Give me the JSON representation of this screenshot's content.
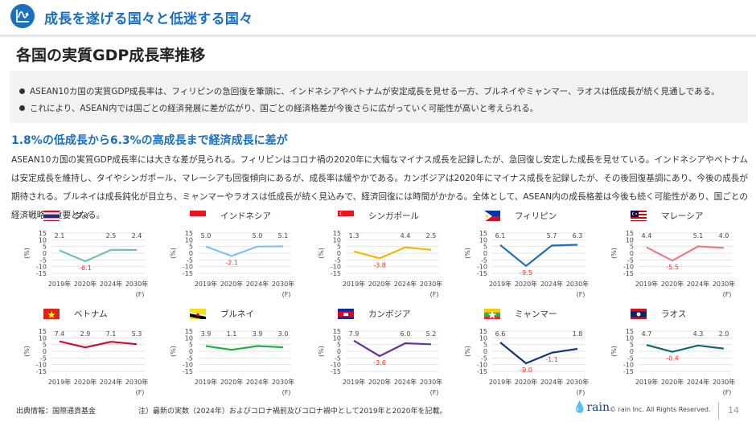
{
  "header": {
    "section_title": "成長を遂げる国々と低迷する国々",
    "icon": "chart-wave-icon"
  },
  "page_title": "各国の実質GDP成長率推移",
  "summary": [
    "ASEAN10カ国の実質GDP成長率は、フィリピンの急回復を筆頭に、インドネシアやベトナムが安定成長を見せる一方、ブルネイやミャンマー、ラオスは低成長が続く見通しである。",
    "これにより、ASEAN内では国ごとの経済発展に差が広がり、国ごとの経済格差が今後さらに広がっていく可能性が高いと考えられる。"
  ],
  "sub_heading": "1.8%の低成長から6.3%の高成長まで経済成長に差が",
  "body_text": "ASEAN10カ国の実質GDP成長率には大きな差が見られる。フィリピンはコロナ禍の2020年に大幅なマイナス成長を記録したが、急回復し安定した成長を見せている。インドネシアやベトナムは安定成長を維持し、タイやシンガポール、マレーシアも回復傾向にあるが、成長率は緩やかである。カンボジアは2020年にマイナス成長を記録したが、その後回復基調にあり、今後の成長が期待される。ブルネイは成長鈍化が目立ち、ミャンマーやラオスは低成長が続く見込みで、経済回復には時間がかかる。全体として、ASEAN内の成長格差は今後も続く可能性があり、国ごとの経済戦略が重要となる。",
  "axis": {
    "y_ticks": [
      "15",
      "10",
      "5",
      "0",
      "-5",
      "-10",
      "-15"
    ],
    "y_label": "(%)",
    "x_labels": [
      "2019年",
      "2020年",
      "2024年",
      "2030年"
    ],
    "forecast_label": "(F)"
  },
  "chart_data": [
    {
      "type": "line",
      "title": "タイ",
      "flag": "thailand",
      "color": "#6fbfbf",
      "categories": [
        "2019年",
        "2020年",
        "2024年",
        "2030年(F)"
      ],
      "values": [
        2.1,
        -6.1,
        2.5,
        2.4
      ],
      "labels": [
        "2.1",
        "-6.1",
        "2.5",
        "2.4"
      ],
      "ylabel": "(%)",
      "ylim": [
        -15,
        15
      ]
    },
    {
      "type": "line",
      "title": "インドネシア",
      "flag": "indonesia",
      "color": "#7cc4f0",
      "categories": [
        "2019年",
        "2020年",
        "2024年",
        "2030年(F)"
      ],
      "values": [
        5.0,
        -2.1,
        5.0,
        5.1
      ],
      "labels": [
        "5.0",
        "-2.1",
        "5.0",
        "5.1"
      ],
      "ylabel": "(%)",
      "ylim": [
        -15,
        15
      ]
    },
    {
      "type": "line",
      "title": "シンガポール",
      "flag": "singapore",
      "color": "#f5b800",
      "categories": [
        "2019年",
        "2020年",
        "2024年",
        "2030年(F)"
      ],
      "values": [
        1.3,
        -3.8,
        4.4,
        2.5
      ],
      "labels": [
        "1.3",
        "-3.8",
        "4.4",
        "2.5"
      ],
      "ylabel": "(%)",
      "ylim": [
        -15,
        15
      ]
    },
    {
      "type": "line",
      "title": "フィリピン",
      "flag": "philippines",
      "color": "#1f6fb8",
      "categories": [
        "2019年",
        "2020年",
        "2024年",
        "2030年(F)"
      ],
      "values": [
        6.1,
        -9.5,
        5.7,
        6.3
      ],
      "labels": [
        "6.1",
        "-9.5",
        "5.7",
        "6.3"
      ],
      "ylabel": "(%)",
      "ylim": [
        -15,
        15
      ]
    },
    {
      "type": "line",
      "title": "マレーシア",
      "flag": "malaysia",
      "color": "#ef7a85",
      "categories": [
        "2019年",
        "2020年",
        "2024年",
        "2030年(F)"
      ],
      "values": [
        4.4,
        -5.5,
        5.1,
        4.0
      ],
      "labels": [
        "4.4",
        "-5.5",
        "5.1",
        "4.0"
      ],
      "ylabel": "(%)",
      "ylim": [
        -15,
        15
      ]
    },
    {
      "type": "line",
      "title": "ベトナム",
      "flag": "vietnam",
      "color": "#c8102e",
      "categories": [
        "2019年",
        "2020年",
        "2024年",
        "2030年(F)"
      ],
      "values": [
        7.4,
        2.9,
        7.1,
        5.3
      ],
      "labels": [
        "7.4",
        "2.9",
        "7.1",
        "5.3"
      ],
      "ylabel": "(%)",
      "ylim": [
        -15,
        15
      ]
    },
    {
      "type": "line",
      "title": "ブルネイ",
      "flag": "brunei",
      "color": "#22b04b",
      "categories": [
        "2019年",
        "2020年",
        "2024年",
        "2030年(F)"
      ],
      "values": [
        3.9,
        1.1,
        3.9,
        3.0
      ],
      "labels": [
        "3.9",
        "1.1",
        "3.9",
        "3.0"
      ],
      "ylabel": "(%)",
      "ylim": [
        -15,
        15
      ]
    },
    {
      "type": "line",
      "title": "カンボジア",
      "flag": "cambodia",
      "color": "#6b2fa0",
      "categories": [
        "2019年",
        "2020年",
        "2024年",
        "2030年(F)"
      ],
      "values": [
        7.9,
        -3.6,
        6.0,
        5.2
      ],
      "labels": [
        "7.9",
        "-3.6",
        "6.0",
        "5.2"
      ],
      "ylabel": "(%)",
      "ylim": [
        -15,
        15
      ]
    },
    {
      "type": "line",
      "title": "ミャンマー",
      "flag": "myanmar",
      "color": "#14357a",
      "categories": [
        "2019年",
        "2020年",
        "2024年",
        "2030年(F)"
      ],
      "values": [
        6.6,
        -9.0,
        -1.1,
        1.8
      ],
      "labels": [
        "6.6",
        "-9.0",
        "-1.1",
        "1.8"
      ],
      "ylabel": "(%)",
      "ylim": [
        -15,
        15
      ]
    },
    {
      "type": "line",
      "title": "ラオス",
      "flag": "laos",
      "color": "#0f6b6b",
      "categories": [
        "2019年",
        "2020年",
        "2024年",
        "2030年(F)"
      ],
      "values": [
        4.7,
        -0.4,
        4.3,
        2.0
      ],
      "labels": [
        "4.7",
        "-0.4",
        "4.3",
        "2.0"
      ],
      "ylabel": "(%)",
      "ylim": [
        -15,
        15
      ]
    }
  ],
  "colors": {
    "accent": "#1a6fc0",
    "negative_label": "#ff2a2a",
    "positive_label": "#444444",
    "grid": "#e3e3e3",
    "summary_bg": "#f2f2f2"
  },
  "footer": {
    "source": "出典情報：国際通貨基金",
    "note": "注）最新の実数（2024年）およびコロナ禍前及びコロナ禍中として2019年と2020年を記載。",
    "logo": "rain",
    "copyright": "© rain Inc. All Rights Reserved.",
    "page_number": "14"
  }
}
